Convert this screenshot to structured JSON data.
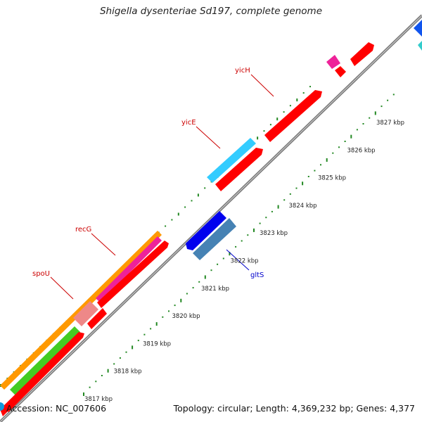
{
  "title": "Shigella dysenteriae Sd197, complete genome",
  "footer": {
    "accession": "Accession: NC_007606",
    "topology": "Topology: circular; Length: 4,369,232 bp; Genes: 4,377"
  },
  "ticks": [
    "3817 kbp",
    "3818 kbp",
    "3819 kbp",
    "3820 kbp",
    "3821 kbp",
    "3822 kbp",
    "3823 kbp",
    "3824 kbp",
    "3825 kbp",
    "3826 kbp",
    "3827 kbp"
  ],
  "genes": {
    "yicH": "yicH",
    "yicE": "yicE",
    "recG": "recG",
    "spoU": "spoU",
    "gltS": "gltS"
  },
  "colors": {
    "forward_cds": "#ff0000",
    "cyan_feature": "#33ccff",
    "blue_feature": "#0000ee",
    "steel_feature": "#4682b4",
    "orange_feature": "#ff9900",
    "magenta_feature": "#ee2299",
    "green_feature": "#44cc22",
    "pink_feature": "#ee8888",
    "backbone": "#888888",
    "tick_dots": "#228822",
    "label_red": "#cc0000",
    "label_blue": "#0000cc"
  }
}
